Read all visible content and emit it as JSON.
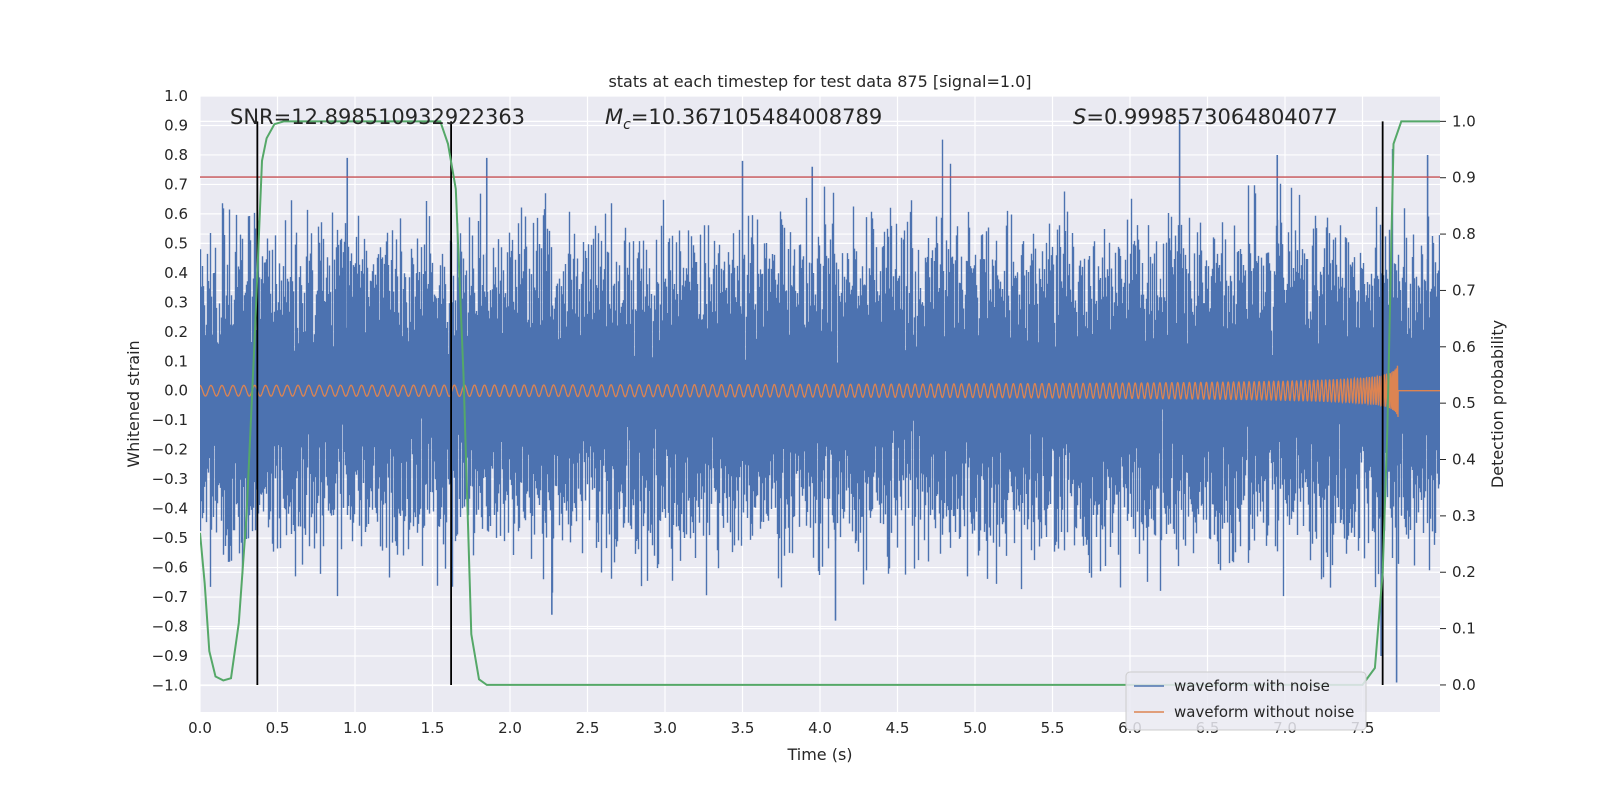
{
  "chart_data": {
    "type": "line",
    "title": "stats at each timestep for test data 875 [signal=1.0]",
    "xlabel": "Time (s)",
    "ylabel_left": "Whitened strain",
    "ylabel_right": "Detection probability",
    "xlim": [
      0.0,
      8.0
    ],
    "ylim_left": [
      -1.09,
      1.0
    ],
    "ylim_right": [
      -0.048,
      1.045
    ],
    "x_ticks": [
      "0.0",
      "0.5",
      "1.0",
      "1.5",
      "2.0",
      "2.5",
      "3.0",
      "3.5",
      "4.0",
      "4.5",
      "5.0",
      "5.5",
      "6.0",
      "6.5",
      "7.0",
      "7.5"
    ],
    "y_left_ticks": [
      "1.0",
      "0.9",
      "0.8",
      "0.7",
      "0.6",
      "0.5",
      "0.4",
      "0.3",
      "0.2",
      "0.1",
      "0.0",
      "−0.1",
      "−0.2",
      "−0.3",
      "−0.4",
      "−0.5",
      "−0.6",
      "−0.7",
      "−0.8",
      "−0.9",
      "−1.0"
    ],
    "y_right_ticks": [
      "1.0",
      "0.9",
      "0.8",
      "0.7",
      "0.6",
      "0.5",
      "0.4",
      "0.3",
      "0.2",
      "0.1",
      "0.0"
    ],
    "grid": true,
    "legend_position": "lower-right",
    "annotations": {
      "snr": "SNR=12.898510932922363",
      "mc_symbol": "M",
      "mc_sub": "c",
      "mc_value": "=10.367105484008789",
      "s_symbol": "S",
      "s_value": "=0.9998573064804077"
    },
    "series": [
      {
        "name": "waveform with noise",
        "axis": "left",
        "color": "#4c72b0",
        "description_type": "noise",
        "x_range": [
          0.0,
          8.0
        ],
        "typical_envelope": [
          -0.45,
          0.45
        ],
        "notable_peaks": [
          {
            "x": 0.95,
            "y": 0.79
          },
          {
            "x": 1.85,
            "y": 0.79
          },
          {
            "x": 3.5,
            "y": 0.78
          },
          {
            "x": 3.95,
            "y": 0.76
          },
          {
            "x": 6.32,
            "y": 0.92
          },
          {
            "x": 6.95,
            "y": 0.8
          },
          {
            "x": 7.92,
            "y": 0.8
          },
          {
            "x": 4.1,
            "y": -0.78
          },
          {
            "x": 2.27,
            "y": -0.76
          },
          {
            "x": 7.72,
            "y": -0.99
          },
          {
            "x": 7.62,
            "y": -0.9
          }
        ]
      },
      {
        "name": "waveform without noise",
        "axis": "left",
        "color": "#dd8452",
        "description_type": "chirp",
        "start_amplitude": 0.018,
        "peak_amplitude": 0.41,
        "peak_time": 7.72,
        "end_time": 7.73
      },
      {
        "name": "detection probability",
        "axis": "right",
        "color": "#55a868",
        "x": [
          0.0,
          0.03,
          0.06,
          0.1,
          0.15,
          0.2,
          0.25,
          0.3,
          0.35,
          0.4,
          0.43,
          0.48,
          0.54,
          0.6,
          0.8,
          1.0,
          1.2,
          1.4,
          1.55,
          1.6,
          1.65,
          1.7,
          1.75,
          1.8,
          1.85,
          2.0,
          3.0,
          4.0,
          5.0,
          6.0,
          7.0,
          7.5,
          7.58,
          7.63,
          7.66,
          7.7,
          7.75,
          7.8,
          8.0
        ],
        "y": [
          0.27,
          0.18,
          0.06,
          0.015,
          0.008,
          0.012,
          0.11,
          0.3,
          0.6,
          0.93,
          0.97,
          0.995,
          1.0,
          1.0,
          1.0,
          1.0,
          1.0,
          1.0,
          1.0,
          0.96,
          0.88,
          0.55,
          0.09,
          0.01,
          0.0,
          0.0,
          0.0,
          0.0,
          0.0,
          0.0,
          0.0,
          0.0,
          0.03,
          0.2,
          0.45,
          0.96,
          1.0,
          1.0,
          1.0
        ]
      }
    ],
    "hlines": [
      {
        "axis": "left",
        "y": 0.725,
        "color": "#c44e52"
      }
    ],
    "vlines": [
      {
        "x": 0.37,
        "color": "#000000"
      },
      {
        "x": 1.62,
        "color": "#000000"
      },
      {
        "x": 7.63,
        "color": "#000000"
      }
    ],
    "colors": {
      "plot_bg": "#eaeaf2",
      "grid": "#ffffff",
      "noise": "#4c72b0",
      "chirp": "#dd8452",
      "probability": "#55a868",
      "threshold": "#c44e52",
      "marker": "#000000"
    }
  }
}
